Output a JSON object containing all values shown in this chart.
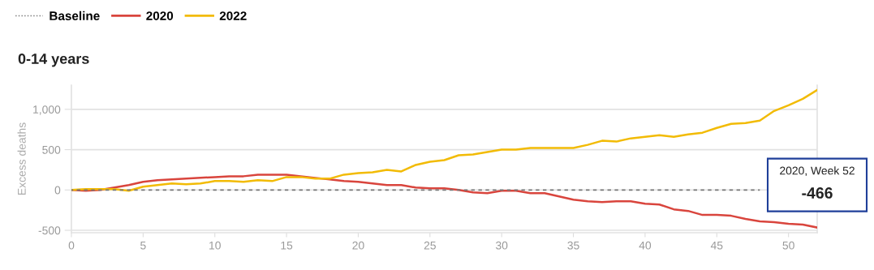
{
  "chart_data": {
    "type": "line",
    "title": "0-14 years",
    "ylabel": "Excess deaths",
    "x": [
      0,
      1,
      2,
      3,
      4,
      5,
      6,
      7,
      8,
      9,
      10,
      11,
      12,
      13,
      14,
      15,
      16,
      17,
      18,
      19,
      20,
      21,
      22,
      23,
      24,
      25,
      26,
      27,
      28,
      29,
      30,
      31,
      32,
      33,
      34,
      35,
      36,
      37,
      38,
      39,
      40,
      41,
      42,
      43,
      44,
      45,
      46,
      47,
      48,
      49,
      50,
      51,
      52
    ],
    "series": [
      {
        "name": "Baseline",
        "color": "#777777",
        "line_style": "dashed",
        "values": [
          0,
          0,
          0,
          0,
          0,
          0,
          0,
          0,
          0,
          0,
          0,
          0,
          0,
          0,
          0,
          0,
          0,
          0,
          0,
          0,
          0,
          0,
          0,
          0,
          0,
          0,
          0,
          0,
          0,
          0,
          0,
          0,
          0,
          0,
          0,
          0,
          0,
          0,
          0,
          0,
          0,
          0,
          0,
          0,
          0,
          0,
          0,
          0,
          0,
          null,
          null,
          null,
          null
        ]
      },
      {
        "name": "2020",
        "color": "#d9453d",
        "values": [
          0,
          -10,
          0,
          30,
          60,
          100,
          120,
          130,
          140,
          150,
          160,
          170,
          170,
          190,
          190,
          190,
          170,
          150,
          130,
          110,
          100,
          80,
          60,
          60,
          30,
          20,
          20,
          0,
          -30,
          -40,
          -10,
          -10,
          -40,
          -40,
          -80,
          -120,
          -140,
          -150,
          -140,
          -140,
          -170,
          -180,
          -240,
          -260,
          -310,
          -310,
          -320,
          -360,
          -390,
          -400,
          -420,
          -430,
          -466
        ]
      },
      {
        "name": "2022",
        "color": "#f2bb05",
        "values": [
          0,
          10,
          10,
          10,
          -10,
          40,
          60,
          80,
          70,
          80,
          110,
          110,
          100,
          120,
          110,
          160,
          160,
          140,
          140,
          190,
          210,
          220,
          250,
          230,
          310,
          350,
          370,
          430,
          440,
          470,
          500,
          500,
          520,
          520,
          520,
          520,
          560,
          610,
          600,
          640,
          660,
          680,
          660,
          690,
          710,
          770,
          820,
          830,
          860,
          980,
          1050,
          1130,
          1240
        ]
      }
    ],
    "xlim": [
      0,
      52
    ],
    "ylim": [
      -530,
      1300
    ],
    "xticks": [
      0,
      5,
      10,
      15,
      20,
      25,
      30,
      35,
      40,
      45,
      50
    ],
    "yticks": [
      {
        "value": -500,
        "label": "-500"
      },
      0,
      500,
      {
        "value": 1000,
        "label": "1,000"
      }
    ],
    "grid": "y",
    "legend": "top left",
    "annotations": [
      "2020, Week 52",
      {
        "text": "-466",
        "x": 52,
        "y": -466
      }
    ]
  }
}
